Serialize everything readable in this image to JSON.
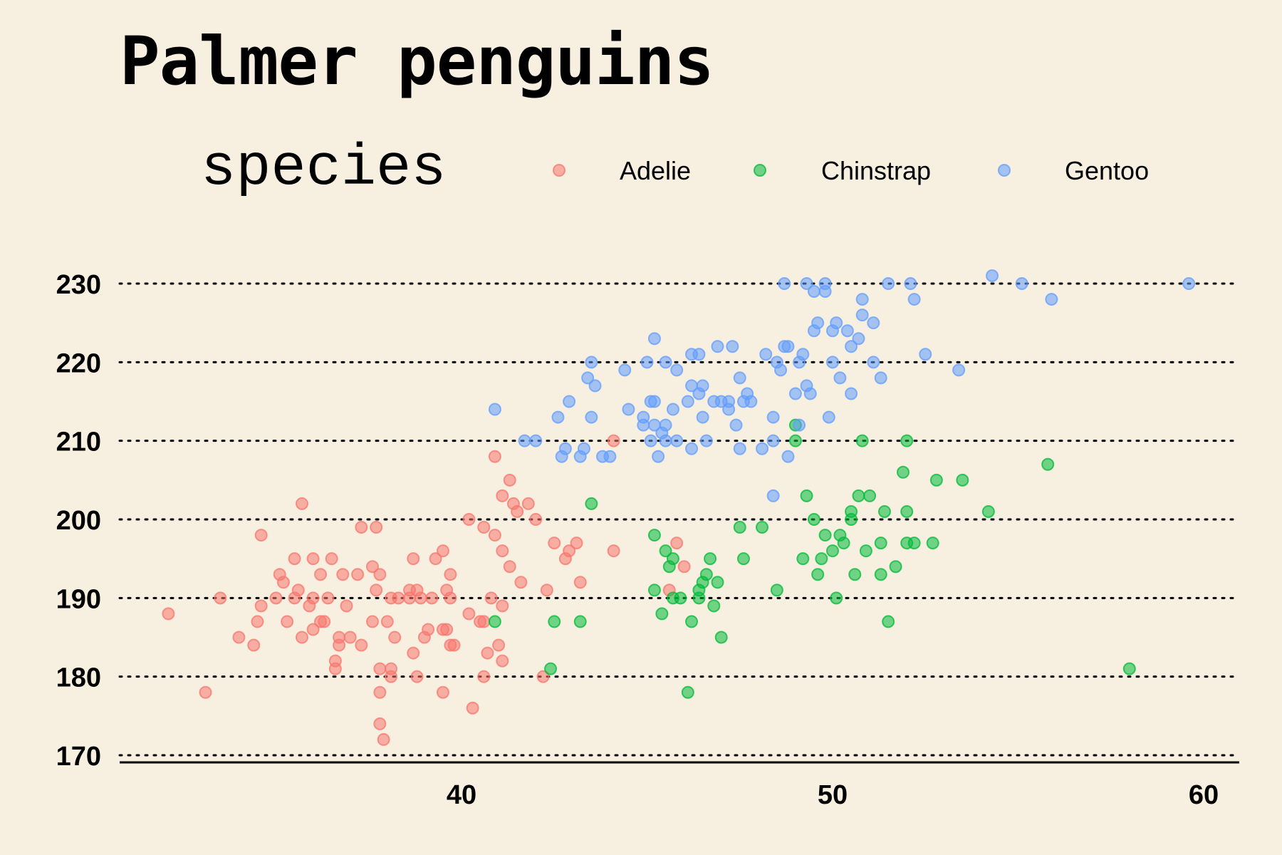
{
  "chart_data": {
    "type": "scatter",
    "title": "Palmer penguins",
    "legend": {
      "title": "species",
      "placement": "top"
    },
    "xlabel": "",
    "ylabel": "",
    "xlim": [
      31.5,
      61
    ],
    "ylim": [
      169,
      232
    ],
    "xticks": [
      40,
      50,
      60
    ],
    "yticks": [
      170,
      180,
      190,
      200,
      210,
      220,
      230
    ],
    "grid": "horizontal-dotted",
    "series": [
      {
        "name": "Adelie",
        "color": "#f8766d",
        "points": [
          [
            32.1,
            188
          ],
          [
            33.1,
            178
          ],
          [
            33.5,
            190
          ],
          [
            34.0,
            185
          ],
          [
            34.4,
            184
          ],
          [
            34.5,
            187
          ],
          [
            34.6,
            198
          ],
          [
            34.6,
            189
          ],
          [
            35.0,
            190
          ],
          [
            35.1,
            193
          ],
          [
            35.2,
            192
          ],
          [
            35.3,
            187
          ],
          [
            35.5,
            195
          ],
          [
            35.5,
            190
          ],
          [
            35.6,
            191
          ],
          [
            35.7,
            185
          ],
          [
            35.7,
            202
          ],
          [
            35.9,
            189
          ],
          [
            36.0,
            186
          ],
          [
            36.0,
            190
          ],
          [
            36.0,
            195
          ],
          [
            36.2,
            187
          ],
          [
            36.3,
            187
          ],
          [
            36.4,
            190
          ],
          [
            36.5,
            195
          ],
          [
            36.6,
            182
          ],
          [
            36.6,
            181
          ],
          [
            36.7,
            184
          ],
          [
            36.7,
            185
          ],
          [
            36.8,
            193
          ],
          [
            36.9,
            189
          ],
          [
            37.0,
            185
          ],
          [
            37.2,
            193
          ],
          [
            37.3,
            184
          ],
          [
            37.6,
            194
          ],
          [
            37.7,
            191
          ],
          [
            37.7,
            199
          ],
          [
            37.8,
            178
          ],
          [
            37.8,
            181
          ],
          [
            37.8,
            193
          ],
          [
            37.8,
            174
          ],
          [
            37.9,
            172
          ],
          [
            38.1,
            180
          ],
          [
            38.1,
            181
          ],
          [
            38.1,
            190
          ],
          [
            38.2,
            185
          ],
          [
            38.3,
            190
          ],
          [
            38.6,
            191
          ],
          [
            38.6,
            190
          ],
          [
            38.7,
            195
          ],
          [
            38.8,
            191
          ],
          [
            38.8,
            180
          ],
          [
            38.9,
            190
          ],
          [
            39.0,
            185
          ],
          [
            39.1,
            186
          ],
          [
            39.2,
            190
          ],
          [
            39.3,
            195
          ],
          [
            39.5,
            178
          ],
          [
            39.5,
            186
          ],
          [
            39.6,
            191
          ],
          [
            39.7,
            184
          ],
          [
            39.7,
            193
          ],
          [
            39.8,
            184
          ],
          [
            40.2,
            200
          ],
          [
            40.3,
            176
          ],
          [
            40.5,
            187
          ],
          [
            40.6,
            180
          ],
          [
            40.6,
            187
          ],
          [
            40.7,
            183
          ],
          [
            40.8,
            190
          ],
          [
            40.9,
            208
          ],
          [
            41.0,
            184
          ],
          [
            41.1,
            203
          ],
          [
            41.1,
            189
          ],
          [
            41.1,
            182
          ],
          [
            41.3,
            205
          ],
          [
            41.4,
            202
          ],
          [
            41.5,
            201
          ],
          [
            41.6,
            192
          ],
          [
            42.0,
            200
          ],
          [
            42.2,
            180
          ],
          [
            42.3,
            191
          ],
          [
            42.5,
            197
          ],
          [
            42.8,
            195
          ],
          [
            42.9,
            196
          ],
          [
            43.1,
            197
          ],
          [
            43.2,
            192
          ],
          [
            44.1,
            196
          ],
          [
            44.1,
            210
          ],
          [
            45.6,
            191
          ],
          [
            45.8,
            197
          ],
          [
            46.0,
            194
          ],
          [
            40.2,
            188
          ],
          [
            39.5,
            196
          ],
          [
            37.3,
            199
          ],
          [
            36.2,
            193
          ],
          [
            38.7,
            183
          ],
          [
            39.7,
            190
          ],
          [
            41.3,
            194
          ],
          [
            40.9,
            198
          ],
          [
            40.6,
            199
          ],
          [
            38.0,
            187
          ],
          [
            41.1,
            196
          ],
          [
            41.8,
            202
          ],
          [
            37.6,
            187
          ],
          [
            39.6,
            186
          ]
        ]
      },
      {
        "name": "Chinstrap",
        "color": "#00ba38",
        "points": [
          [
            40.9,
            187
          ],
          [
            42.4,
            181
          ],
          [
            42.5,
            187
          ],
          [
            43.2,
            187
          ],
          [
            43.5,
            202
          ],
          [
            45.2,
            198
          ],
          [
            45.2,
            191
          ],
          [
            45.4,
            188
          ],
          [
            45.5,
            196
          ],
          [
            45.6,
            194
          ],
          [
            45.7,
            190
          ],
          [
            45.7,
            195
          ],
          [
            45.9,
            190
          ],
          [
            46.1,
            178
          ],
          [
            46.2,
            187
          ],
          [
            46.4,
            191
          ],
          [
            46.4,
            190
          ],
          [
            46.5,
            192
          ],
          [
            46.6,
            193
          ],
          [
            46.7,
            195
          ],
          [
            46.8,
            189
          ],
          [
            46.9,
            192
          ],
          [
            47.0,
            185
          ],
          [
            47.5,
            199
          ],
          [
            47.6,
            195
          ],
          [
            48.1,
            199
          ],
          [
            48.5,
            191
          ],
          [
            49.0,
            210
          ],
          [
            49.0,
            212
          ],
          [
            49.2,
            195
          ],
          [
            49.3,
            203
          ],
          [
            49.5,
            200
          ],
          [
            49.6,
            193
          ],
          [
            49.7,
            195
          ],
          [
            49.8,
            198
          ],
          [
            50.0,
            196
          ],
          [
            50.1,
            190
          ],
          [
            50.2,
            198
          ],
          [
            50.3,
            197
          ],
          [
            50.5,
            200
          ],
          [
            50.5,
            201
          ],
          [
            50.6,
            193
          ],
          [
            50.7,
            203
          ],
          [
            50.8,
            210
          ],
          [
            50.9,
            196
          ],
          [
            51.0,
            203
          ],
          [
            51.3,
            197
          ],
          [
            51.3,
            193
          ],
          [
            51.4,
            201
          ],
          [
            51.5,
            187
          ],
          [
            51.7,
            194
          ],
          [
            51.9,
            206
          ],
          [
            52.0,
            197
          ],
          [
            52.0,
            201
          ],
          [
            52.0,
            210
          ],
          [
            52.2,
            197
          ],
          [
            52.7,
            197
          ],
          [
            52.8,
            205
          ],
          [
            53.5,
            205
          ],
          [
            54.2,
            201
          ],
          [
            55.8,
            207
          ],
          [
            58.0,
            181
          ]
        ]
      },
      {
        "name": "Gentoo",
        "color": "#619cff",
        "points": [
          [
            40.9,
            214
          ],
          [
            41.7,
            210
          ],
          [
            42.0,
            210
          ],
          [
            42.6,
            213
          ],
          [
            42.7,
            208
          ],
          [
            42.8,
            209
          ],
          [
            42.9,
            215
          ],
          [
            43.2,
            208
          ],
          [
            43.3,
            209
          ],
          [
            43.4,
            218
          ],
          [
            43.5,
            220
          ],
          [
            43.5,
            213
          ],
          [
            43.6,
            217
          ],
          [
            43.8,
            208
          ],
          [
            44.0,
            208
          ],
          [
            44.4,
            219
          ],
          [
            44.5,
            214
          ],
          [
            44.9,
            213
          ],
          [
            44.9,
            212
          ],
          [
            45.0,
            220
          ],
          [
            45.1,
            215
          ],
          [
            45.1,
            210
          ],
          [
            45.2,
            215
          ],
          [
            45.2,
            223
          ],
          [
            45.2,
            212
          ],
          [
            45.3,
            208
          ],
          [
            45.4,
            211
          ],
          [
            45.5,
            220
          ],
          [
            45.5,
            212
          ],
          [
            45.5,
            210
          ],
          [
            45.7,
            214
          ],
          [
            45.8,
            219
          ],
          [
            45.8,
            210
          ],
          [
            46.1,
            215
          ],
          [
            46.2,
            209
          ],
          [
            46.2,
            221
          ],
          [
            46.2,
            217
          ],
          [
            46.4,
            216
          ],
          [
            46.4,
            221
          ],
          [
            46.5,
            217
          ],
          [
            46.5,
            213
          ],
          [
            46.6,
            210
          ],
          [
            46.8,
            215
          ],
          [
            47.2,
            214
          ],
          [
            47.2,
            215
          ],
          [
            47.3,
            222
          ],
          [
            47.4,
            212
          ],
          [
            47.5,
            218
          ],
          [
            47.5,
            209
          ],
          [
            47.6,
            215
          ],
          [
            47.7,
            216
          ],
          [
            47.8,
            215
          ],
          [
            48.1,
            209
          ],
          [
            48.2,
            221
          ],
          [
            48.4,
            210
          ],
          [
            48.4,
            213
          ],
          [
            48.4,
            203
          ],
          [
            48.5,
            220
          ],
          [
            48.6,
            219
          ],
          [
            48.7,
            230
          ],
          [
            48.8,
            222
          ],
          [
            48.8,
            208
          ],
          [
            49.0,
            216
          ],
          [
            49.1,
            212
          ],
          [
            49.1,
            220
          ],
          [
            49.2,
            221
          ],
          [
            49.3,
            217
          ],
          [
            49.4,
            216
          ],
          [
            49.5,
            224
          ],
          [
            49.5,
            229
          ],
          [
            49.6,
            225
          ],
          [
            49.8,
            229
          ],
          [
            49.8,
            230
          ],
          [
            49.9,
            213
          ],
          [
            50.0,
            220
          ],
          [
            50.0,
            224
          ],
          [
            50.1,
            225
          ],
          [
            50.2,
            218
          ],
          [
            50.4,
            224
          ],
          [
            50.5,
            222
          ],
          [
            50.5,
            216
          ],
          [
            50.7,
            223
          ],
          [
            50.8,
            226
          ],
          [
            50.8,
            228
          ],
          [
            51.1,
            220
          ],
          [
            51.1,
            225
          ],
          [
            51.3,
            218
          ],
          [
            51.5,
            230
          ],
          [
            52.1,
            230
          ],
          [
            52.2,
            228
          ],
          [
            52.5,
            221
          ],
          [
            53.4,
            219
          ],
          [
            54.3,
            231
          ],
          [
            55.1,
            230
          ],
          [
            55.9,
            228
          ],
          [
            59.6,
            230
          ],
          [
            46.9,
            222
          ],
          [
            47.0,
            215
          ],
          [
            48.7,
            222
          ],
          [
            49.3,
            230
          ]
        ]
      }
    ]
  }
}
